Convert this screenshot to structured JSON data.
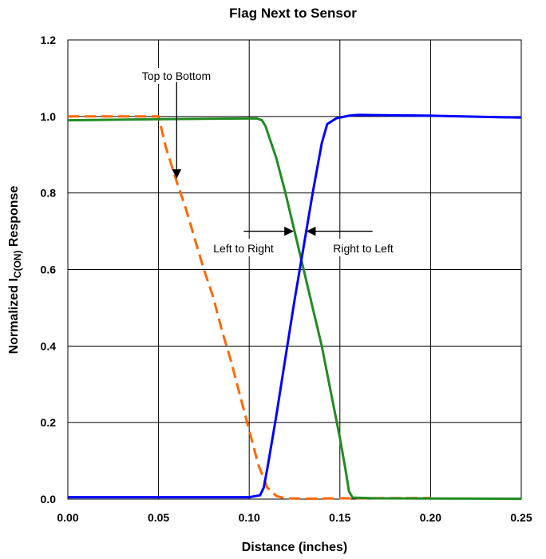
{
  "chart_data": {
    "type": "line",
    "title": "Flag Next to Sensor",
    "xlabel": "Distance (inches)",
    "ylabel": {
      "prefix": "Normalized I",
      "subscript": "C(ON)",
      "suffix": " Response"
    },
    "xlim": [
      0,
      0.25
    ],
    "ylim": [
      0,
      1.2
    ],
    "xticks": [
      0.0,
      0.05,
      0.1,
      0.15,
      0.2,
      0.25
    ],
    "xtick_labels": [
      "0.00",
      "0.05",
      "0.10",
      "0.15",
      "0.20",
      "0.25"
    ],
    "yticks": [
      0.0,
      0.2,
      0.4,
      0.6,
      0.8,
      1.0,
      1.2
    ],
    "ytick_labels": [
      "0.0",
      "0.2",
      "0.4",
      "0.6",
      "0.8",
      "1.0",
      "1.2"
    ],
    "grid": true,
    "series": [
      {
        "color": "#ff6600",
        "style": "dashed",
        "points": [
          [
            0.0,
            1.0
          ],
          [
            0.05,
            1.0
          ],
          [
            0.051,
            0.98
          ],
          [
            0.054,
            0.92
          ],
          [
            0.058,
            0.86
          ],
          [
            0.06,
            0.83
          ],
          [
            0.065,
            0.76
          ],
          [
            0.07,
            0.68
          ],
          [
            0.075,
            0.6
          ],
          [
            0.08,
            0.53
          ],
          [
            0.085,
            0.44
          ],
          [
            0.09,
            0.36
          ],
          [
            0.095,
            0.27
          ],
          [
            0.1,
            0.18
          ],
          [
            0.105,
            0.09
          ],
          [
            0.11,
            0.03
          ],
          [
            0.115,
            0.008
          ],
          [
            0.12,
            0.002
          ],
          [
            0.13,
            0.001
          ],
          [
            0.15,
            0.002
          ],
          [
            0.2,
            0.003
          ]
        ]
      },
      {
        "color": "#228b22",
        "style": "solid",
        "points": [
          [
            0.0,
            0.99
          ],
          [
            0.05,
            0.993
          ],
          [
            0.104,
            0.995
          ],
          [
            0.107,
            0.99
          ],
          [
            0.109,
            0.975
          ],
          [
            0.115,
            0.89
          ],
          [
            0.12,
            0.8
          ],
          [
            0.125,
            0.7
          ],
          [
            0.13,
            0.6
          ],
          [
            0.135,
            0.5
          ],
          [
            0.14,
            0.4
          ],
          [
            0.145,
            0.28
          ],
          [
            0.15,
            0.16
          ],
          [
            0.153,
            0.08
          ],
          [
            0.155,
            0.02
          ],
          [
            0.157,
            0.004
          ],
          [
            0.17,
            0.002
          ],
          [
            0.25,
            0.001
          ]
        ]
      },
      {
        "color": "#0000ff",
        "style": "solid",
        "points": [
          [
            0.0,
            0.005
          ],
          [
            0.1,
            0.005
          ],
          [
            0.106,
            0.01
          ],
          [
            0.108,
            0.03
          ],
          [
            0.11,
            0.08
          ],
          [
            0.115,
            0.22
          ],
          [
            0.12,
            0.37
          ],
          [
            0.125,
            0.52
          ],
          [
            0.13,
            0.66
          ],
          [
            0.135,
            0.8
          ],
          [
            0.14,
            0.93
          ],
          [
            0.143,
            0.98
          ],
          [
            0.148,
            0.995
          ],
          [
            0.155,
            1.002
          ],
          [
            0.16,
            1.004
          ],
          [
            0.2,
            1.002
          ],
          [
            0.25,
            0.997
          ]
        ]
      }
    ],
    "annotations": [
      {
        "text": "Top to Bottom",
        "arrow_from": [
          0.06,
          1.09
        ],
        "arrow_to": [
          0.06,
          0.84
        ]
      },
      {
        "text": "Left to Right",
        "arrow_from": [
          0.097,
          0.7
        ],
        "arrow_to": [
          0.124,
          0.7
        ]
      },
      {
        "text": "Right to Left",
        "arrow_from": [
          0.168,
          0.7
        ],
        "arrow_to": [
          0.132,
          0.7
        ]
      }
    ]
  }
}
